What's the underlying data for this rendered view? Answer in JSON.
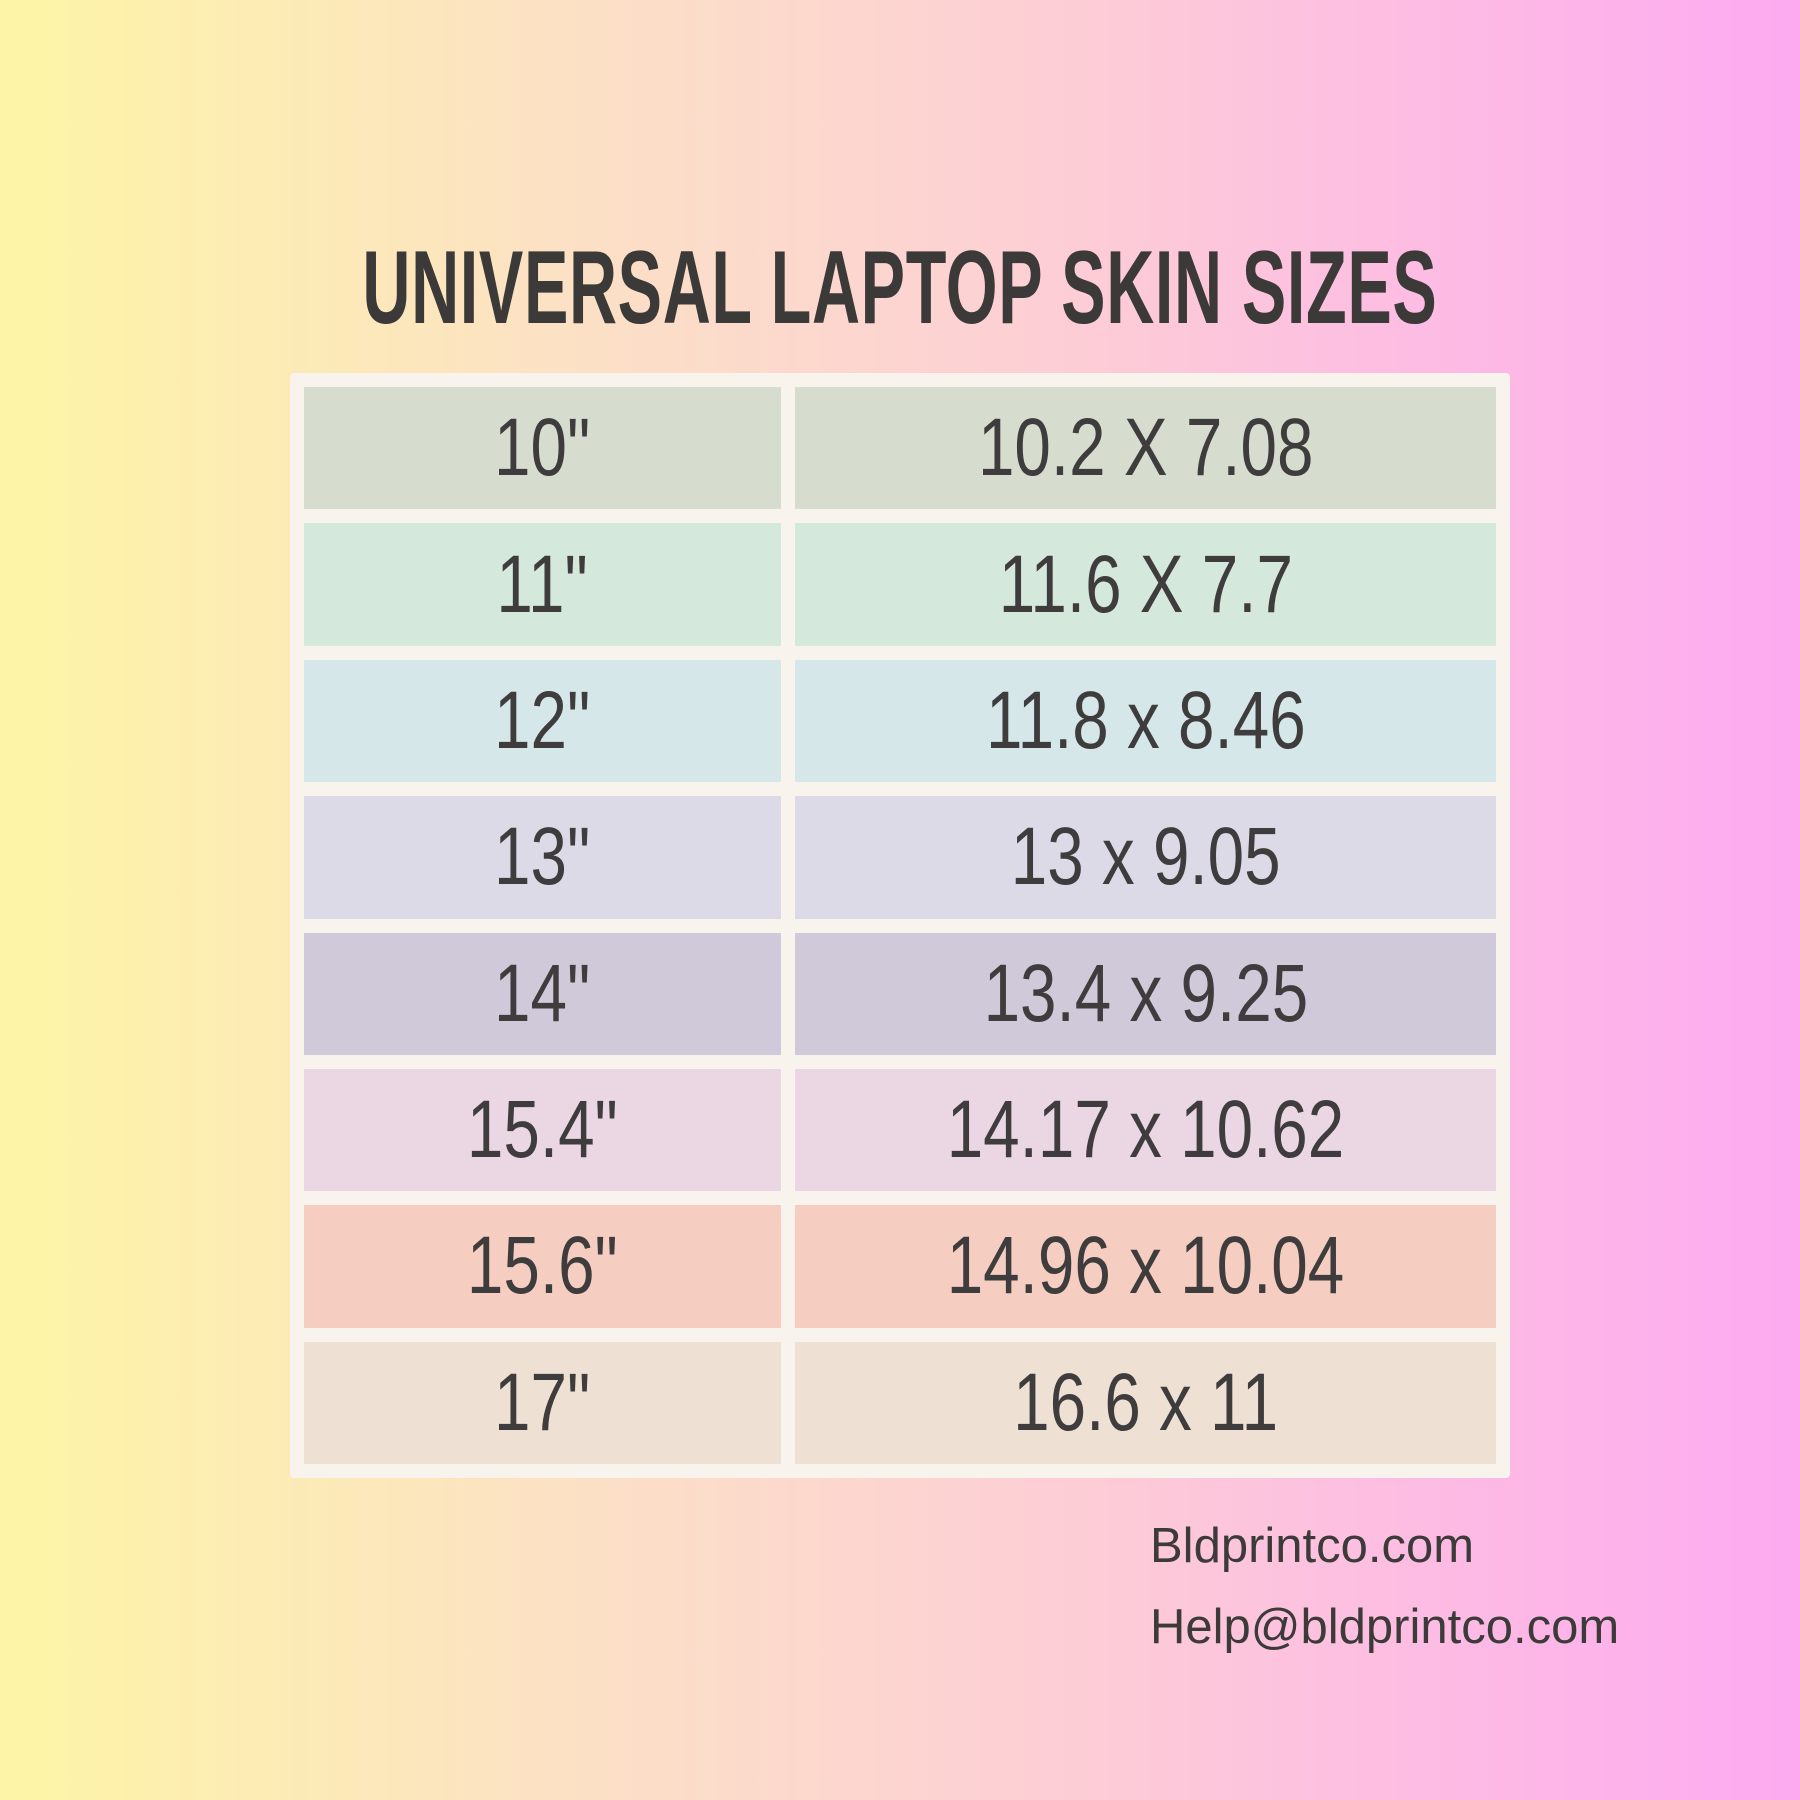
{
  "title": "UNIVERSAL LAPTOP SKIN SIZES",
  "table": {
    "rows": [
      {
        "size": "10\"",
        "dimensions": "10.2 X 7.08",
        "color": "#d6ddcf"
      },
      {
        "size": "11\"",
        "dimensions": "11.6 X 7.7",
        "color": "#d4e8dc"
      },
      {
        "size": "12\"",
        "dimensions": "11.8 x 8.46",
        "color": "#d5e7e9"
      },
      {
        "size": "13\"",
        "dimensions": "13 x 9.05",
        "color": "#dcdae6"
      },
      {
        "size": "14\"",
        "dimensions": "13.4 x 9.25",
        "color": "#d0c9da"
      },
      {
        "size": "15.4\"",
        "dimensions": "14.17 x 10.62",
        "color": "#ebd6e4"
      },
      {
        "size": "15.6\"",
        "dimensions": "14.96 x 10.04",
        "color": "#f5cdc1"
      },
      {
        "size": "17\"",
        "dimensions": "16.6 x 11",
        "color": "#eee1d4"
      }
    ]
  },
  "footer": {
    "website": "Bldprintco.com",
    "email": "Help@bldprintco.com"
  },
  "colors": {
    "background_gradient": [
      "#fdf5a6",
      "#fce0c6",
      "#fdd1d3",
      "#fdaaf1"
    ],
    "frame": "#f9f3ee",
    "text": "#3e3c3c"
  },
  "chart_data": {
    "type": "table",
    "title": "UNIVERSAL LAPTOP SKIN SIZES",
    "rows": [
      [
        "10\"",
        "10.2 X 7.08"
      ],
      [
        "11\"",
        "11.6 X 7.7"
      ],
      [
        "12\"",
        "11.8 x 8.46"
      ],
      [
        "13\"",
        "13 x 9.05"
      ],
      [
        "14\"",
        "13.4 x 9.25"
      ],
      [
        "15.4\"",
        "14.17 x 10.62"
      ],
      [
        "15.6\"",
        "14.96 x 10.04"
      ],
      [
        "17\"",
        "16.6 x 11"
      ]
    ]
  }
}
